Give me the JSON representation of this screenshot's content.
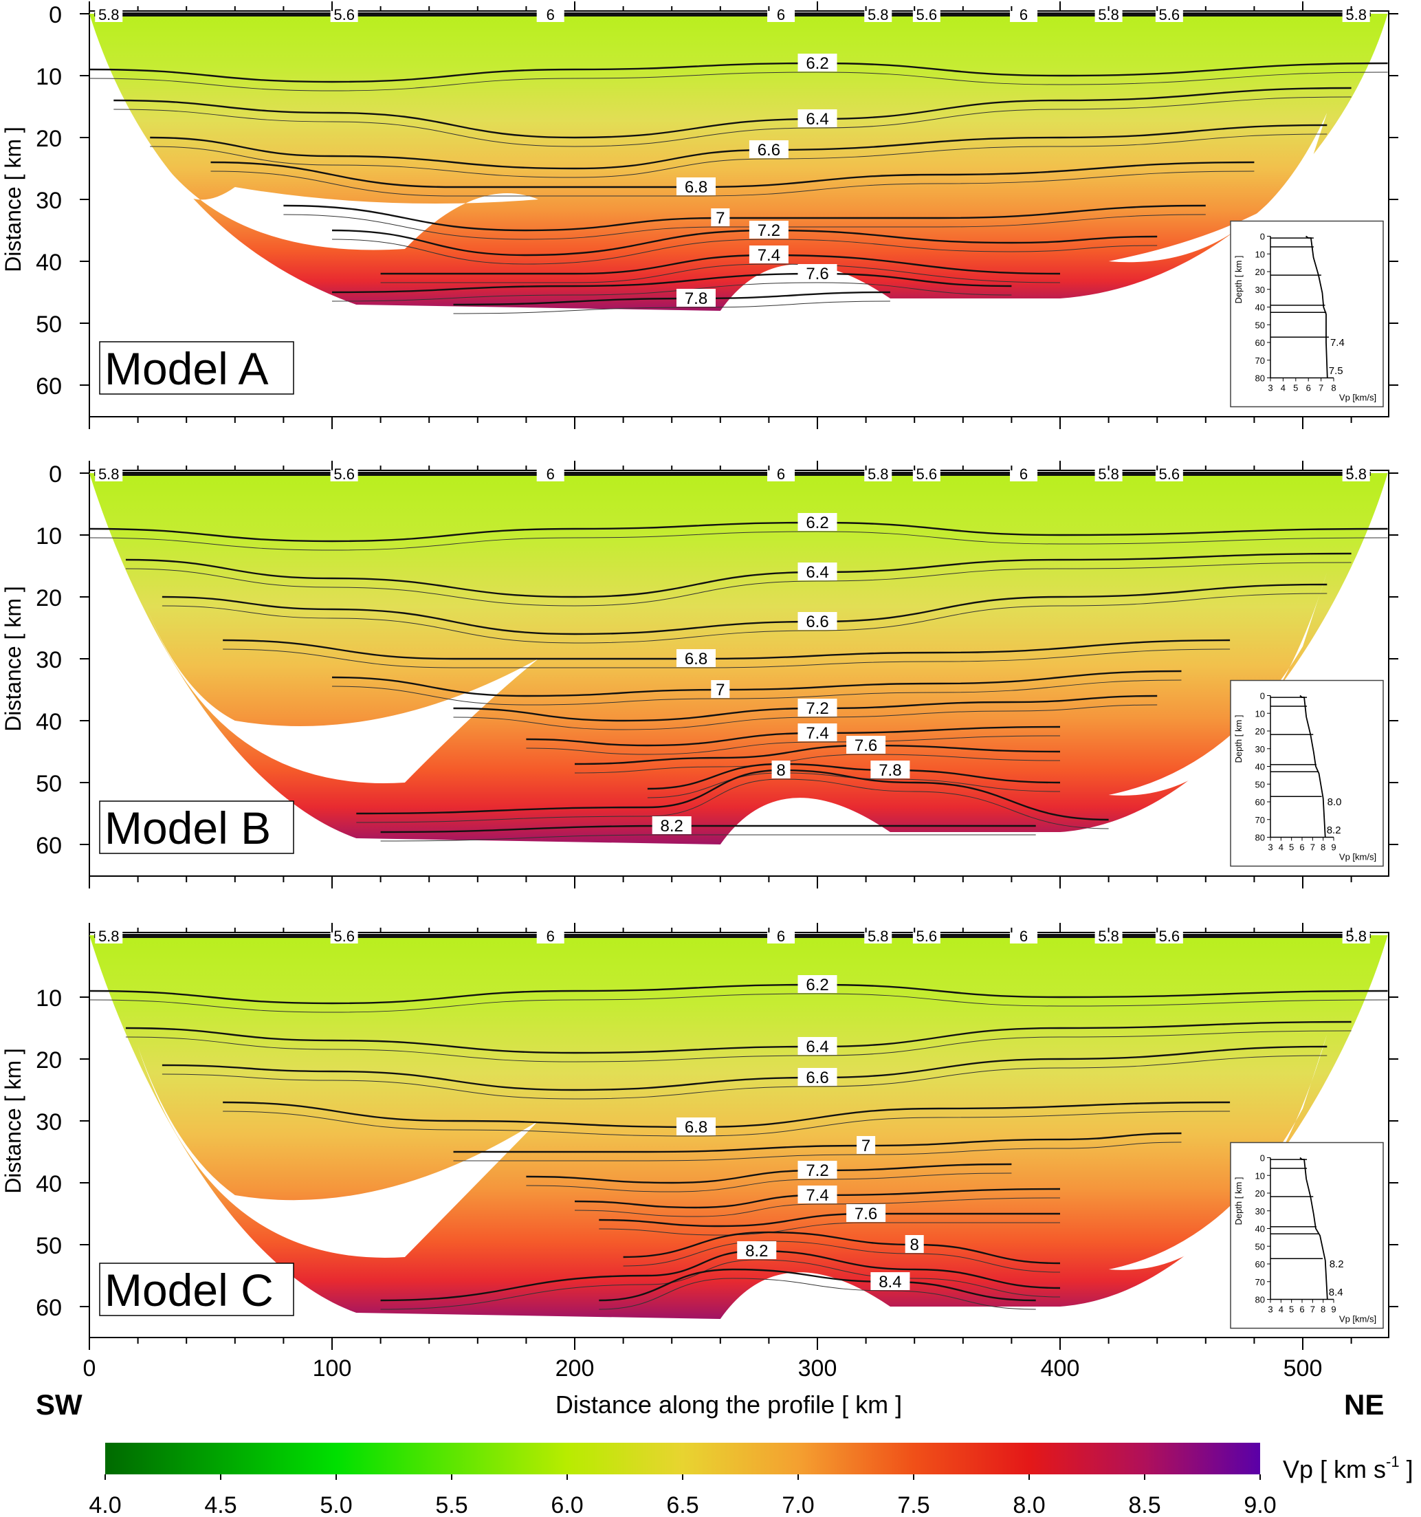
{
  "figure": {
    "left_label": "SW",
    "right_label": "NE",
    "xlabel": "Distance  along the profile [ km ]",
    "x_ticks": [
      "0",
      "100",
      "200",
      "300",
      "400",
      "500"
    ]
  },
  "chart_data": [
    {
      "type": "heatmap",
      "panel_label": "Model A",
      "ylabel": "Distance [ km ]",
      "xlim": [
        0,
        535
      ],
      "ylim": [
        65,
        0
      ],
      "y_ticks": [
        "0",
        "10",
        "20",
        "30",
        "40",
        "50",
        "60"
      ],
      "moho_depth_km": 46,
      "contours": [
        {
          "label": "6.2",
          "depths": [
            [
              0,
              9
            ],
            [
              100,
              11
            ],
            [
              200,
              9
            ],
            [
              300,
              8
            ],
            [
              400,
              10
            ],
            [
              535,
              8
            ]
          ]
        },
        {
          "label": "6.4",
          "depths": [
            [
              10,
              14
            ],
            [
              100,
              16
            ],
            [
              200,
              20
            ],
            [
              300,
              17
            ],
            [
              400,
              14
            ],
            [
              520,
              12
            ]
          ]
        },
        {
          "label": "6.6",
          "depths": [
            [
              25,
              20
            ],
            [
              100,
              23
            ],
            [
              200,
              25
            ],
            [
              280,
              22
            ],
            [
              400,
              20
            ],
            [
              510,
              18
            ]
          ]
        },
        {
          "label": "6.8",
          "depths": [
            [
              50,
              24
            ],
            [
              150,
              28
            ],
            [
              250,
              28
            ],
            [
              350,
              26
            ],
            [
              480,
              24
            ]
          ]
        },
        {
          "label": "7",
          "depths": [
            [
              80,
              31
            ],
            [
              180,
              35
            ],
            [
              260,
              33
            ],
            [
              350,
              33
            ],
            [
              460,
              31
            ]
          ]
        },
        {
          "label": "7.2",
          "depths": [
            [
              100,
              35
            ],
            [
              180,
              39
            ],
            [
              280,
              35
            ],
            [
              380,
              37
            ],
            [
              440,
              36
            ]
          ]
        },
        {
          "label": "7.4",
          "depths": [
            [
              120,
              42
            ],
            [
              200,
              42
            ],
            [
              280,
              39
            ],
            [
              400,
              42
            ]
          ]
        },
        {
          "label": "7.6",
          "depths": [
            [
              100,
              45
            ],
            [
              200,
              44
            ],
            [
              300,
              42
            ],
            [
              380,
              44
            ]
          ]
        },
        {
          "label": "7.8",
          "depths": [
            [
              150,
              47
            ],
            [
              250,
              46
            ],
            [
              330,
              45
            ]
          ]
        }
      ],
      "contour_labels": [
        "5.8",
        "5.6",
        "6",
        "6.2",
        "6.4",
        "6.6",
        "6.8",
        "7",
        "7.2",
        "7.4",
        "7.6",
        "7.8"
      ],
      "inset": {
        "xlabel": "Vp [km/s]",
        "ylabel": "Depth [ km ]",
        "x_ticks": [
          "3",
          "4",
          "5",
          "6",
          "7",
          "8"
        ],
        "y_ticks": [
          "0",
          "10",
          "20",
          "30",
          "40",
          "50",
          "60",
          "70",
          "80"
        ],
        "xlim": [
          3,
          8
        ],
        "profile": [
          [
            5.8,
            0
          ],
          [
            6.0,
            1
          ],
          [
            6.2,
            1
          ],
          [
            6.4,
            12
          ],
          [
            6.8,
            22
          ],
          [
            7.1,
            32
          ],
          [
            7.2,
            40
          ],
          [
            7.4,
            44
          ],
          [
            7.4,
            60
          ],
          [
            7.5,
            80
          ]
        ],
        "interfaces_km": [
          1,
          6,
          22,
          39,
          43,
          57
        ],
        "annotations": [
          "7.4",
          "7.5"
        ]
      }
    },
    {
      "type": "heatmap",
      "panel_label": "Model B",
      "ylabel": "Distance [ km ]",
      "xlim": [
        0,
        535
      ],
      "ylim": [
        65,
        0
      ],
      "y_ticks": [
        "0",
        "10",
        "20",
        "30",
        "40",
        "50",
        "60"
      ],
      "moho_depth_km": 58,
      "contours": [
        {
          "label": "6.2",
          "depths": [
            [
              0,
              9
            ],
            [
              100,
              11
            ],
            [
              200,
              9
            ],
            [
              300,
              8
            ],
            [
              400,
              10
            ],
            [
              535,
              9
            ]
          ]
        },
        {
          "label": "6.4",
          "depths": [
            [
              15,
              14
            ],
            [
              100,
              17
            ],
            [
              200,
              20
            ],
            [
              300,
              16
            ],
            [
              400,
              14
            ],
            [
              520,
              13
            ]
          ]
        },
        {
          "label": "6.6",
          "depths": [
            [
              30,
              20
            ],
            [
              100,
              22
            ],
            [
              200,
              26
            ],
            [
              300,
              24
            ],
            [
              400,
              20
            ],
            [
              510,
              18
            ]
          ]
        },
        {
          "label": "6.8",
          "depths": [
            [
              55,
              27
            ],
            [
              150,
              30
            ],
            [
              250,
              30
            ],
            [
              350,
              29
            ],
            [
              470,
              27
            ]
          ]
        },
        {
          "label": "7",
          "depths": [
            [
              100,
              33
            ],
            [
              180,
              36
            ],
            [
              260,
              35
            ],
            [
              350,
              34
            ],
            [
              450,
              32
            ]
          ]
        },
        {
          "label": "7.2",
          "depths": [
            [
              150,
              38
            ],
            [
              220,
              40
            ],
            [
              300,
              38
            ],
            [
              380,
              37
            ],
            [
              440,
              36
            ]
          ]
        },
        {
          "label": "7.4",
          "depths": [
            [
              180,
              43
            ],
            [
              230,
              44
            ],
            [
              300,
              42
            ],
            [
              400,
              41
            ]
          ]
        },
        {
          "label": "7.6",
          "depths": [
            [
              200,
              47
            ],
            [
              260,
              46
            ],
            [
              320,
              44
            ],
            [
              400,
              45
            ]
          ]
        },
        {
          "label": "7.8",
          "depths": [
            [
              230,
              51
            ],
            [
              285,
              47
            ],
            [
              330,
              48
            ],
            [
              400,
              50
            ]
          ]
        },
        {
          "label": "8",
          "depths": [
            [
              110,
              55
            ],
            [
              230,
              54
            ],
            [
              285,
              48
            ],
            [
              340,
              50
            ],
            [
              420,
              56
            ]
          ]
        },
        {
          "label": "8.2",
          "depths": [
            [
              120,
              58
            ],
            [
              240,
              57
            ],
            [
              390,
              57
            ]
          ]
        }
      ],
      "contour_labels": [
        "5.8",
        "5.6",
        "6",
        "6.2",
        "6.4",
        "6.6",
        "6.8",
        "7",
        "7.2",
        "7.4",
        "7.6",
        "7.8",
        "8",
        "8.2"
      ],
      "inset": {
        "xlabel": "Vp [km/s]",
        "ylabel": "Depth [ km ]",
        "x_ticks": [
          "3",
          "4",
          "5",
          "6",
          "7",
          "8",
          "9"
        ],
        "y_ticks": [
          "0",
          "10",
          "20",
          "30",
          "40",
          "50",
          "60",
          "70",
          "80"
        ],
        "xlim": [
          3,
          9
        ],
        "profile": [
          [
            5.8,
            0
          ],
          [
            6.0,
            1
          ],
          [
            6.2,
            1
          ],
          [
            6.4,
            12
          ],
          [
            6.8,
            22
          ],
          [
            7.1,
            32
          ],
          [
            7.3,
            40
          ],
          [
            7.6,
            44
          ],
          [
            8.0,
            58
          ],
          [
            8.2,
            80
          ]
        ],
        "interfaces_km": [
          1,
          6,
          22,
          39,
          43,
          57
        ],
        "annotations": [
          "8.0",
          "8.2"
        ]
      }
    },
    {
      "type": "heatmap",
      "panel_label": "Model C",
      "ylabel": "Distance [ km ]",
      "xlim": [
        0,
        535
      ],
      "ylim": [
        65,
        0
      ],
      "y_ticks": [
        "10",
        "20",
        "30",
        "40",
        "50",
        "60"
      ],
      "moho_depth_km": 60,
      "contours": [
        {
          "label": "6.2",
          "depths": [
            [
              0,
              9
            ],
            [
              100,
              11
            ],
            [
              200,
              9
            ],
            [
              300,
              8
            ],
            [
              400,
              10
            ],
            [
              535,
              9
            ]
          ]
        },
        {
          "label": "6.4",
          "depths": [
            [
              15,
              15
            ],
            [
              100,
              17
            ],
            [
              200,
              19
            ],
            [
              300,
              18
            ],
            [
              400,
              15
            ],
            [
              520,
              14
            ]
          ]
        },
        {
          "label": "6.6",
          "depths": [
            [
              30,
              21
            ],
            [
              100,
              22
            ],
            [
              200,
              25
            ],
            [
              300,
              23
            ],
            [
              400,
              20
            ],
            [
              510,
              18
            ]
          ]
        },
        {
          "label": "6.8",
          "depths": [
            [
              55,
              27
            ],
            [
              150,
              30
            ],
            [
              250,
              31
            ],
            [
              350,
              28
            ],
            [
              470,
              27
            ]
          ]
        },
        {
          "label": "7",
          "depths": [
            [
              150,
              35
            ],
            [
              230,
              35
            ],
            [
              320,
              34
            ],
            [
              400,
              33
            ],
            [
              450,
              32
            ]
          ]
        },
        {
          "label": "7.2",
          "depths": [
            [
              180,
              39
            ],
            [
              240,
              40
            ],
            [
              300,
              38
            ],
            [
              380,
              37
            ]
          ]
        },
        {
          "label": "7.4",
          "depths": [
            [
              200,
              43
            ],
            [
              250,
              44
            ],
            [
              300,
              42
            ],
            [
              400,
              41
            ]
          ]
        },
        {
          "label": "7.6",
          "depths": [
            [
              210,
              46
            ],
            [
              260,
              47
            ],
            [
              320,
              45
            ],
            [
              400,
              45
            ]
          ]
        },
        {
          "label": "8",
          "depths": [
            [
              220,
              52
            ],
            [
              280,
              48
            ],
            [
              340,
              50
            ],
            [
              400,
              53
            ]
          ]
        },
        {
          "label": "8.2",
          "depths": [
            [
              120,
              59
            ],
            [
              230,
              55
            ],
            [
              275,
              51
            ],
            [
              340,
              54
            ],
            [
              400,
              57
            ]
          ]
        },
        {
          "label": "8.4",
          "depths": [
            [
              210,
              59
            ],
            [
              265,
              54
            ],
            [
              330,
              56
            ],
            [
              390,
              59
            ]
          ]
        }
      ],
      "contour_labels": [
        "5.8",
        "5.6",
        "6",
        "6.2",
        "6.4",
        "6.6",
        "6.8",
        "7",
        "7.2",
        "7.4",
        "7.6",
        "8",
        "8.2",
        "8.4"
      ],
      "inset": {
        "xlabel": "Vp [km/s]",
        "ylabel": "Depth [ km ]",
        "x_ticks": [
          "3",
          "4",
          "5",
          "6",
          "7",
          "8",
          "9"
        ],
        "y_ticks": [
          "0",
          "10",
          "20",
          "30",
          "40",
          "50",
          "60",
          "70",
          "80"
        ],
        "xlim": [
          3,
          9
        ],
        "profile": [
          [
            5.8,
            0
          ],
          [
            6.0,
            1
          ],
          [
            6.2,
            1
          ],
          [
            6.4,
            12
          ],
          [
            6.8,
            22
          ],
          [
            7.1,
            32
          ],
          [
            7.3,
            40
          ],
          [
            7.7,
            44
          ],
          [
            8.2,
            58
          ],
          [
            8.4,
            80
          ]
        ],
        "interfaces_km": [
          1,
          6,
          22,
          39,
          43,
          57
        ],
        "annotations": [
          "8.2",
          "8.4"
        ]
      }
    }
  ],
  "colorbar": {
    "label": "Vp [ km s",
    "label_sup": "-1",
    "label_end": " ]",
    "ticks": [
      "4.0",
      "4.5",
      "5.0",
      "5.5",
      "6.0",
      "6.5",
      "7.0",
      "7.5",
      "8.0",
      "8.5",
      "9.0"
    ],
    "range": [
      4.0,
      9.0
    ],
    "stops": [
      "#006400",
      "#00e000",
      "#a8ee00",
      "#e8d840",
      "#f08030",
      "#f02010",
      "#c01050",
      "#6000a0"
    ]
  }
}
